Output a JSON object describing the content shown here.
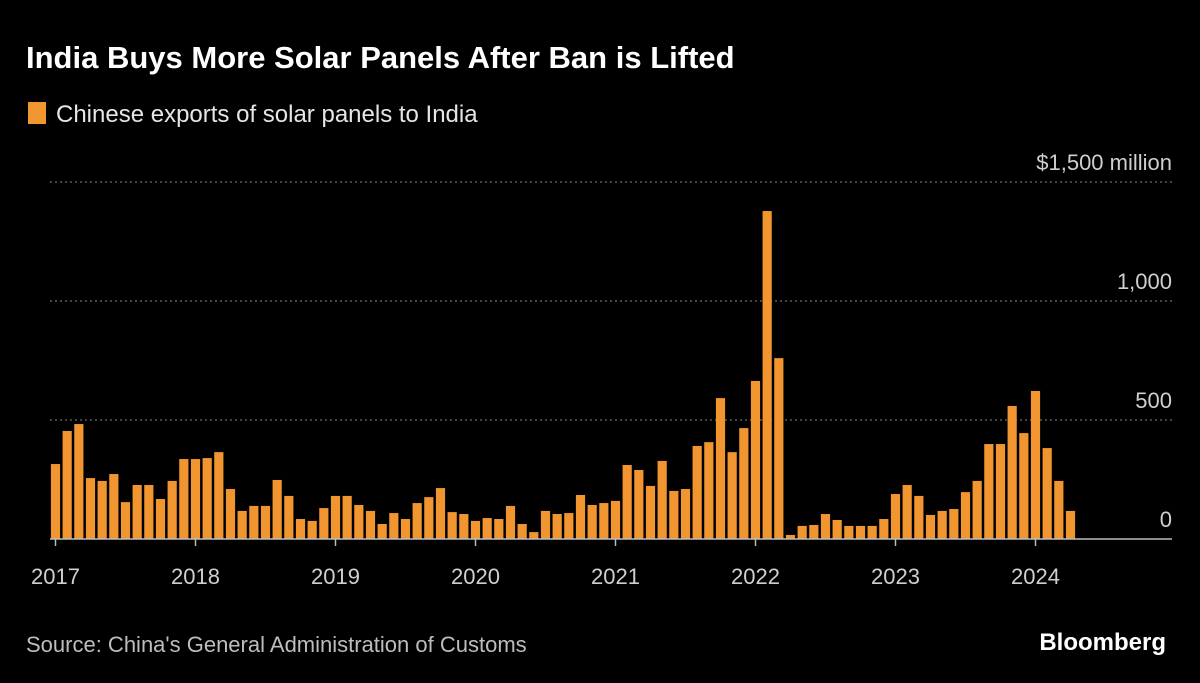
{
  "chart_data": {
    "type": "bar",
    "title": "India Buys More Solar Panels After Ban is Lifted",
    "source": "Source: China's General Administration of Customs",
    "brand": "Bloomberg",
    "color": "#f0952f",
    "legend": "top-left",
    "grid": true,
    "categories": [
      "2017",
      null,
      null,
      null,
      null,
      null,
      null,
      null,
      null,
      null,
      null,
      null,
      "2018",
      null,
      null,
      null,
      null,
      null,
      null,
      null,
      null,
      null,
      null,
      null,
      "2019",
      null,
      null,
      null,
      null,
      null,
      null,
      null,
      null,
      null,
      null,
      null,
      "2020",
      null,
      null,
      null,
      null,
      null,
      null,
      null,
      null,
      null,
      null,
      null,
      "2021",
      null,
      null,
      null,
      null,
      null,
      null,
      null,
      null,
      null,
      null,
      null,
      "2022",
      null,
      null,
      null,
      null,
      null,
      null,
      null,
      null,
      null,
      null,
      null,
      "2023",
      null,
      null,
      null,
      null,
      null,
      null,
      null,
      null,
      null,
      null,
      null,
      "2024",
      null,
      null,
      null
    ],
    "series": [
      {
        "name": "Chinese exports of solar panels to India",
        "color": "#f0952f",
        "values": [
          315,
          454,
          483,
          256,
          244,
          273,
          155,
          227,
          227,
          168,
          244,
          336,
          336,
          340,
          365,
          210,
          118,
          139,
          139,
          248,
          181,
          84,
          76,
          130,
          181,
          181,
          143,
          118,
          63,
          109,
          84,
          151,
          176,
          214,
          113,
          105,
          76,
          88,
          84,
          139,
          63,
          29,
          118,
          105,
          109,
          185,
          143,
          151,
          160,
          311,
          290,
          223,
          328,
          202,
          210,
          391,
          407,
          592,
          365,
          466,
          664,
          1378,
          760,
          17,
          55,
          59,
          105,
          80,
          55,
          55,
          55,
          84,
          189,
          227,
          181,
          101,
          118,
          126,
          197,
          244,
          399,
          399,
          559,
          445,
          622,
          382,
          244,
          118
        ]
      }
    ],
    "ylim": [
      0,
      1500
    ],
    "yticks": [
      0,
      500,
      {
        "value": 1000,
        "label": "1,000"
      },
      {
        "value": 1500,
        "label": "$1,500 million"
      }
    ]
  }
}
